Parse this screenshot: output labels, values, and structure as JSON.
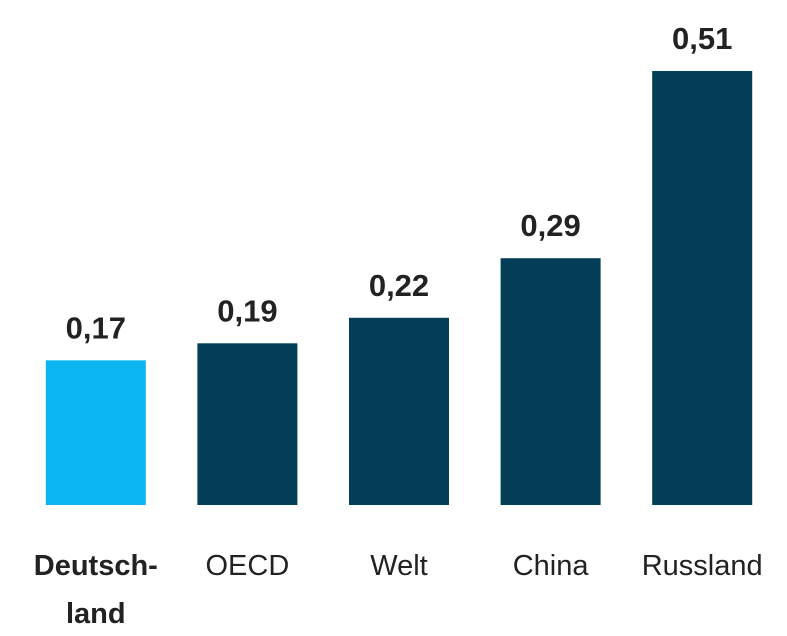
{
  "chart_data": {
    "type": "bar",
    "categories": [
      "Deutsch-\nland",
      "OECD",
      "Welt",
      "China",
      "Russland"
    ],
    "values": [
      0.17,
      0.19,
      0.22,
      0.29,
      0.51
    ],
    "value_labels": [
      "0,17",
      "0,19",
      "0,22",
      "0,29",
      "0,51"
    ],
    "colors": [
      "#0bb5f0",
      "#023e55",
      "#023e55",
      "#023e55",
      "#023e55"
    ],
    "ylim": [
      0,
      0.51
    ]
  }
}
